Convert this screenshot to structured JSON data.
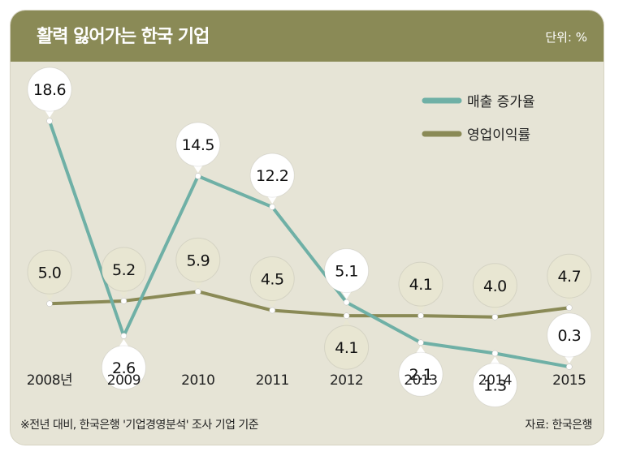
{
  "header": {
    "title": "활력 잃어가는 한국 기업",
    "unit": "단위: %"
  },
  "footer": {
    "note": "※전년 대비, 한국은행 '기업경영분석' 조사 기업 기준",
    "source": "자료: 한국은행"
  },
  "colors": {
    "header_bg": "#8a8a56",
    "card_bg": "#e6e4d6",
    "sales_line": "#6fb0a6",
    "profit_line": "#8a8a56",
    "bubble_white": "#ffffff",
    "bubble_beige": "#e8e6d2"
  },
  "chart_data": {
    "type": "line",
    "categories": [
      "2008년",
      "2009",
      "2010",
      "2011",
      "2012",
      "2013",
      "2014",
      "2015"
    ],
    "series": [
      {
        "name": "매출 증가율",
        "values": [
          18.6,
          2.6,
          14.5,
          12.2,
          5.1,
          2.1,
          1.3,
          0.3
        ],
        "labels": [
          "18.6",
          "2.6",
          "14.5",
          "12.2",
          "5.1",
          "2.1",
          "1.3",
          "0.3"
        ]
      },
      {
        "name": "영업이익률",
        "values": [
          5.0,
          5.2,
          5.9,
          4.5,
          4.1,
          4.1,
          4.0,
          4.7
        ],
        "labels": [
          "5.0",
          "5.2",
          "5.9",
          "4.5",
          "4.1",
          "4.1",
          "4.0",
          "4.7"
        ]
      }
    ],
    "ylim": [
      0,
      20
    ],
    "legend": "top-right",
    "grid": false
  }
}
